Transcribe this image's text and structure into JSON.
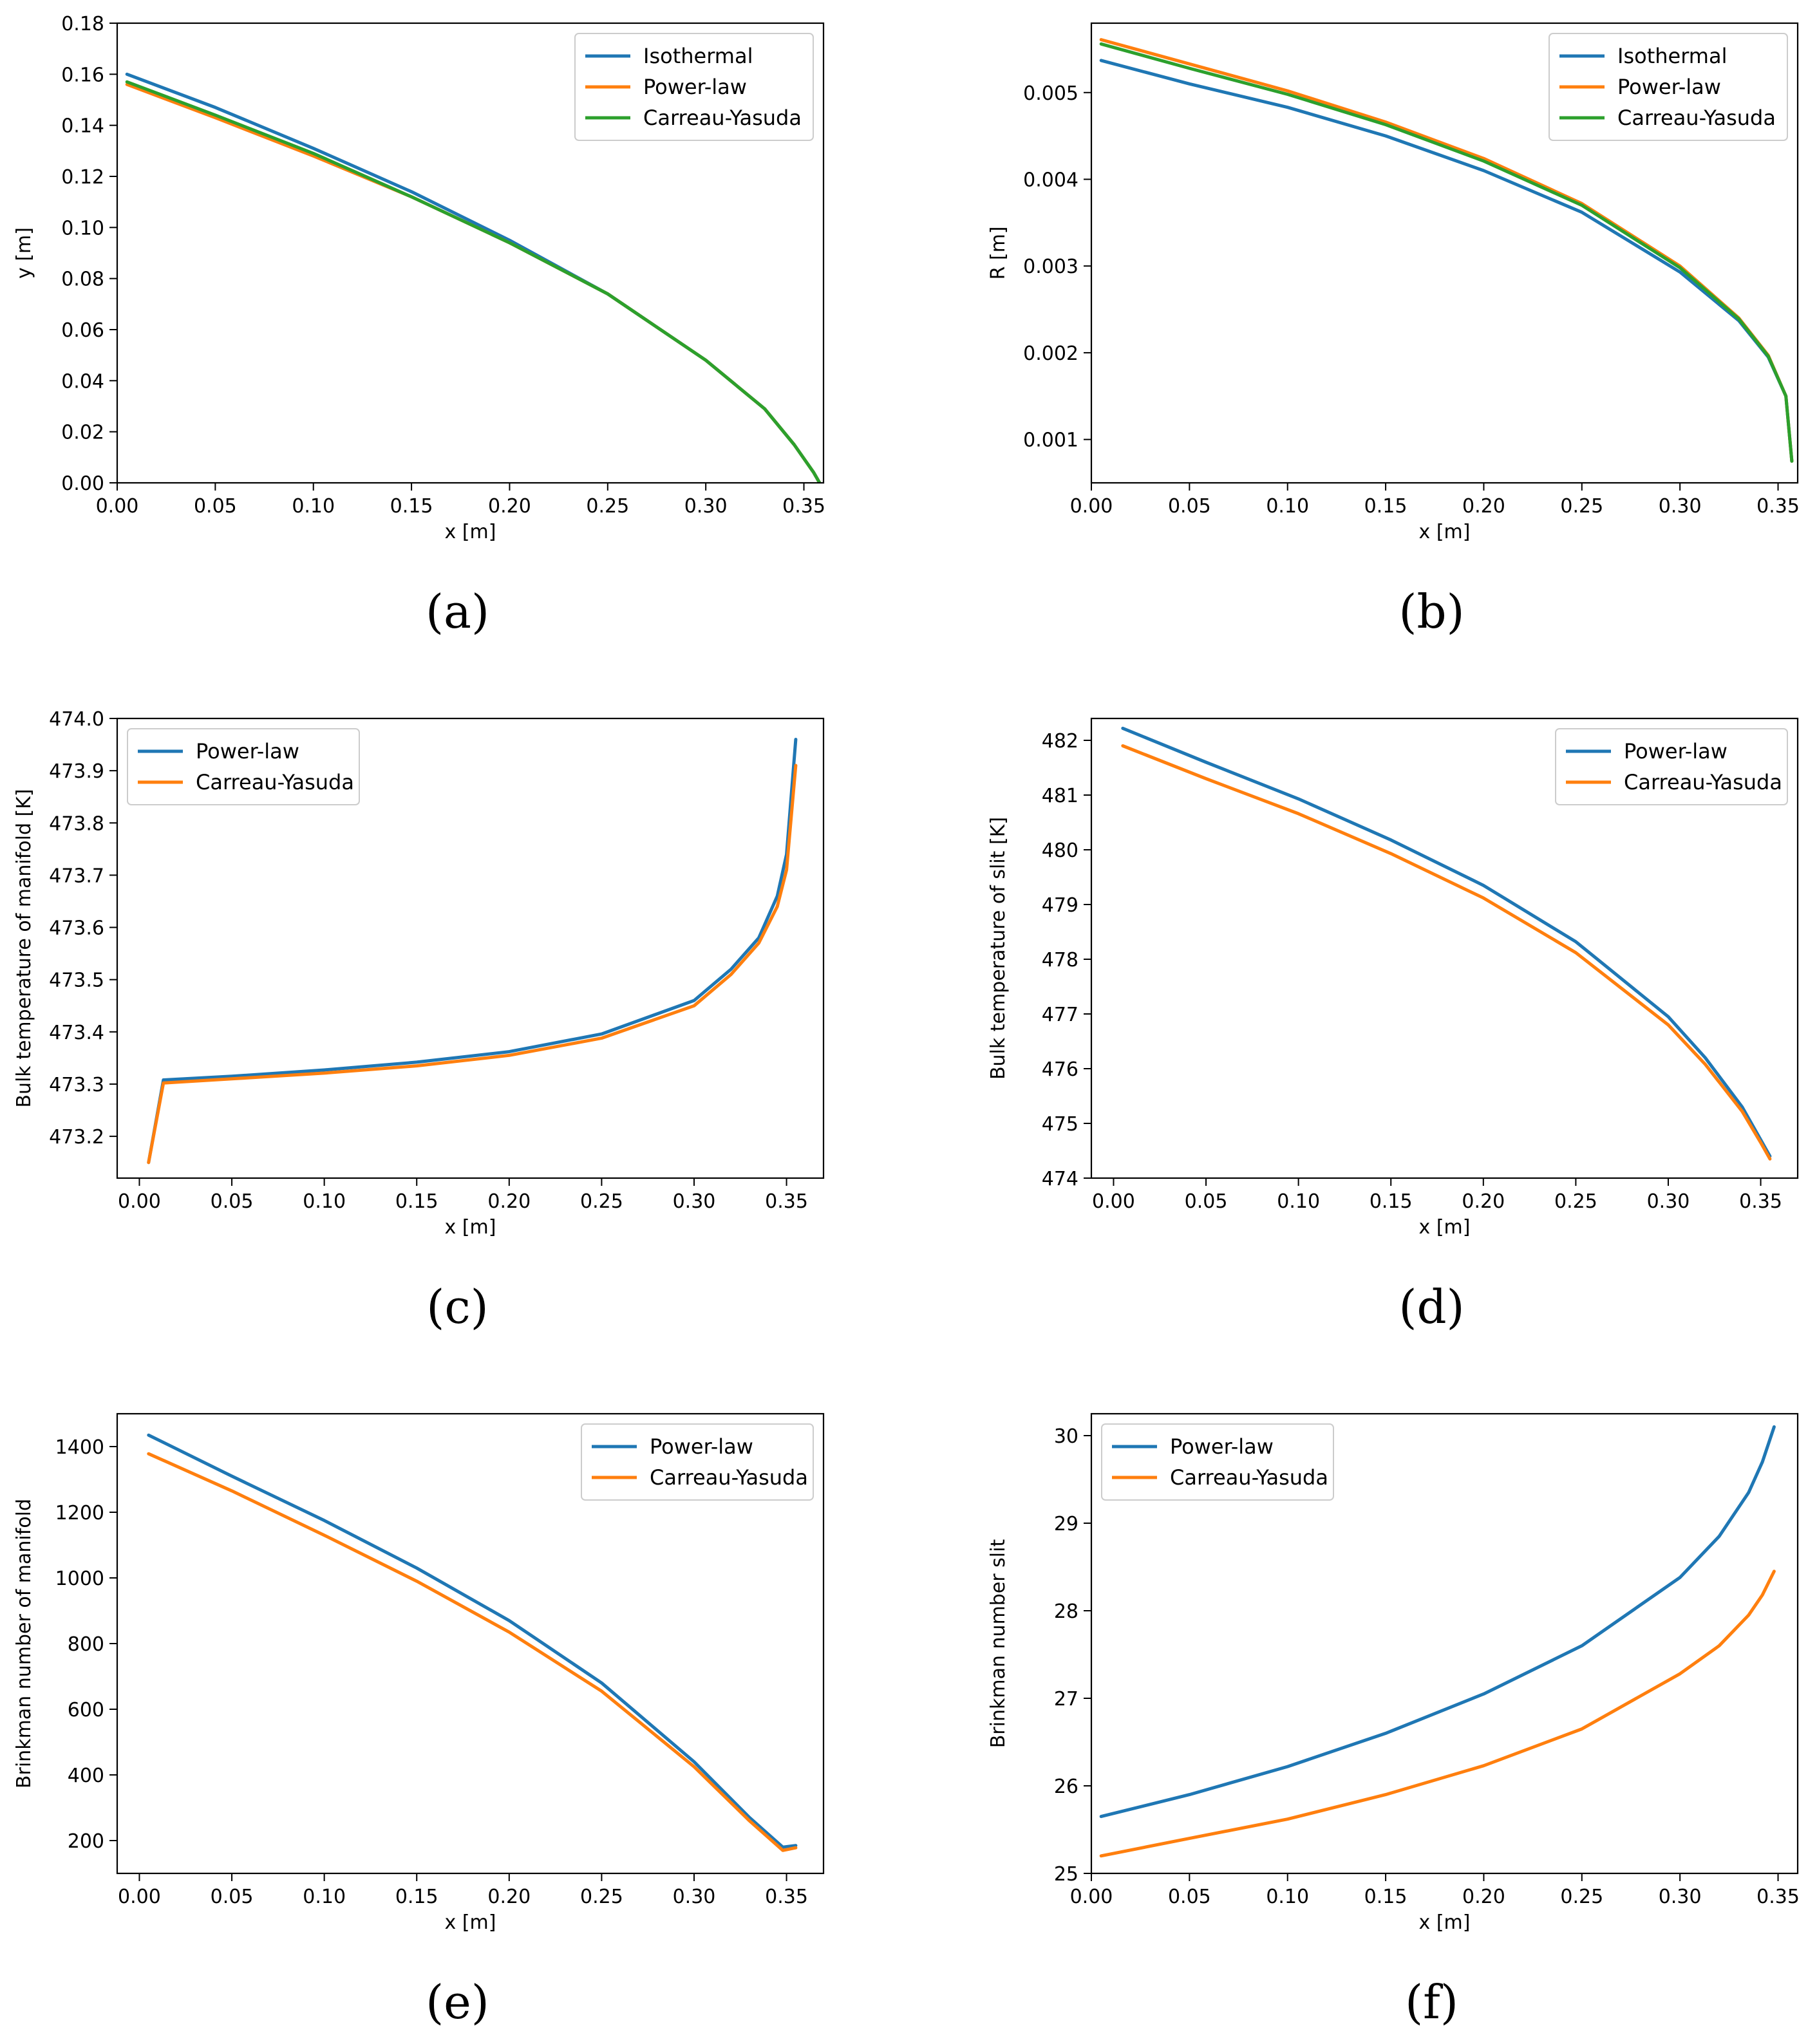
{
  "colors": {
    "blue": "#1f77b4",
    "orange": "#ff7f0e",
    "green": "#2ca02c"
  },
  "chart_data": [
    {
      "id": "a",
      "panel_label": "(a)",
      "type": "line",
      "xlabel": "x [m]",
      "ylabel": "y [m]",
      "xlim": [
        0,
        0.36
      ],
      "ylim": [
        0,
        0.18
      ],
      "xticks": [
        0,
        0.05,
        0.1,
        0.15,
        0.2,
        0.25,
        0.3,
        0.35
      ],
      "xtick_labels": [
        "0.00",
        "0.05",
        "0.10",
        "0.15",
        "0.20",
        "0.25",
        "0.30",
        "0.35"
      ],
      "yticks": [
        0,
        0.02,
        0.04,
        0.06,
        0.08,
        0.1,
        0.12,
        0.14,
        0.16,
        0.18
      ],
      "ytick_labels": [
        "0.00",
        "0.02",
        "0.04",
        "0.06",
        "0.08",
        "0.10",
        "0.12",
        "0.14",
        "0.16",
        "0.18"
      ],
      "legend": "top-right",
      "series": [
        {
          "name": "Isothermal",
          "color": "#1f77b4",
          "x": [
            0.005,
            0.05,
            0.1,
            0.15,
            0.2,
            0.25,
            0.3,
            0.33,
            0.345,
            0.355,
            0.358
          ],
          "y": [
            0.16,
            0.147,
            0.131,
            0.114,
            0.095,
            0.074,
            0.048,
            0.029,
            0.015,
            0.004,
            0.0
          ]
        },
        {
          "name": "Power-law",
          "color": "#ff7f0e",
          "x": [
            0.005,
            0.05,
            0.1,
            0.15,
            0.2,
            0.25,
            0.3,
            0.33,
            0.345,
            0.355,
            0.358
          ],
          "y": [
            0.156,
            0.143,
            0.128,
            0.112,
            0.094,
            0.074,
            0.048,
            0.029,
            0.015,
            0.004,
            0.0
          ]
        },
        {
          "name": "Carreau-Yasuda",
          "color": "#2ca02c",
          "x": [
            0.005,
            0.05,
            0.1,
            0.15,
            0.2,
            0.25,
            0.3,
            0.33,
            0.345,
            0.355,
            0.358
          ],
          "y": [
            0.157,
            0.144,
            0.129,
            0.112,
            0.094,
            0.074,
            0.048,
            0.029,
            0.015,
            0.004,
            0.0
          ]
        }
      ]
    },
    {
      "id": "b",
      "panel_label": "(b)",
      "type": "line",
      "xlabel": "x [m]",
      "ylabel": "R [m]",
      "xlim": [
        0,
        0.36
      ],
      "ylim": [
        0.0005,
        0.0058
      ],
      "xticks": [
        0,
        0.05,
        0.1,
        0.15,
        0.2,
        0.25,
        0.3,
        0.35
      ],
      "xtick_labels": [
        "0.00",
        "0.05",
        "0.10",
        "0.15",
        "0.20",
        "0.25",
        "0.30",
        "0.35"
      ],
      "yticks": [
        0.001,
        0.002,
        0.003,
        0.004,
        0.005
      ],
      "ytick_labels": [
        "0.001",
        "0.002",
        "0.003",
        "0.004",
        "0.005"
      ],
      "legend": "top-right",
      "series": [
        {
          "name": "Isothermal",
          "color": "#1f77b4",
          "x": [
            0.005,
            0.05,
            0.1,
            0.15,
            0.2,
            0.25,
            0.3,
            0.33,
            0.345,
            0.354,
            0.357
          ],
          "y": [
            0.00537,
            0.0051,
            0.00483,
            0.0045,
            0.0041,
            0.00362,
            0.00293,
            0.00237,
            0.00195,
            0.0015,
            0.00075
          ]
        },
        {
          "name": "Power-law",
          "color": "#ff7f0e",
          "x": [
            0.005,
            0.05,
            0.1,
            0.15,
            0.2,
            0.25,
            0.3,
            0.33,
            0.345,
            0.354,
            0.357
          ],
          "y": [
            0.00561,
            0.00533,
            0.00502,
            0.00466,
            0.00424,
            0.00372,
            0.003,
            0.0024,
            0.00197,
            0.0015,
            0.00075
          ]
        },
        {
          "name": "Carreau-Yasuda",
          "color": "#2ca02c",
          "x": [
            0.005,
            0.05,
            0.1,
            0.15,
            0.2,
            0.25,
            0.3,
            0.33,
            0.345,
            0.354,
            0.357
          ],
          "y": [
            0.00556,
            0.00528,
            0.00498,
            0.00463,
            0.00421,
            0.0037,
            0.00298,
            0.00239,
            0.00196,
            0.0015,
            0.00075
          ]
        }
      ]
    },
    {
      "id": "c",
      "panel_label": "(c)",
      "type": "line",
      "xlabel": "x [m]",
      "ylabel": "Bulk temperature of manifold [K]",
      "xlim": [
        -0.012,
        0.37
      ],
      "ylim": [
        473.12,
        474.0
      ],
      "xticks": [
        0,
        0.05,
        0.1,
        0.15,
        0.2,
        0.25,
        0.3,
        0.35
      ],
      "xtick_labels": [
        "0.00",
        "0.05",
        "0.10",
        "0.15",
        "0.20",
        "0.25",
        "0.30",
        "0.35"
      ],
      "yticks": [
        473.2,
        473.3,
        473.4,
        473.5,
        473.6,
        473.7,
        473.8,
        473.9,
        474.0
      ],
      "ytick_labels": [
        "473.2",
        "473.3",
        "473.4",
        "473.5",
        "473.6",
        "473.7",
        "473.8",
        "473.9",
        "474.0"
      ],
      "legend": "top-left",
      "series": [
        {
          "name": "Power-law",
          "color": "#1f77b4",
          "x": [
            0.005,
            0.013,
            0.05,
            0.1,
            0.15,
            0.2,
            0.25,
            0.3,
            0.32,
            0.335,
            0.345,
            0.35,
            0.355
          ],
          "y": [
            473.15,
            473.308,
            473.315,
            473.327,
            473.342,
            473.362,
            473.396,
            473.46,
            473.52,
            473.58,
            473.66,
            473.74,
            473.96
          ]
        },
        {
          "name": "Carreau-Yasuda",
          "color": "#ff7f0e",
          "x": [
            0.005,
            0.013,
            0.05,
            0.1,
            0.15,
            0.2,
            0.25,
            0.3,
            0.32,
            0.335,
            0.345,
            0.35,
            0.355
          ],
          "y": [
            473.15,
            473.302,
            473.31,
            473.321,
            473.335,
            473.355,
            473.388,
            473.45,
            473.51,
            473.57,
            473.64,
            473.71,
            473.91
          ]
        }
      ]
    },
    {
      "id": "d",
      "panel_label": "(d)",
      "type": "line",
      "xlabel": "x [m]",
      "ylabel": "Bulk temperature of slit [K]",
      "xlim": [
        -0.012,
        0.37
      ],
      "ylim": [
        474.0,
        482.4
      ],
      "xticks": [
        0,
        0.05,
        0.1,
        0.15,
        0.2,
        0.25,
        0.3,
        0.35
      ],
      "xtick_labels": [
        "0.00",
        "0.05",
        "0.10",
        "0.15",
        "0.20",
        "0.25",
        "0.30",
        "0.35"
      ],
      "yticks": [
        474,
        475,
        476,
        477,
        478,
        479,
        480,
        481,
        482
      ],
      "ytick_labels": [
        "474",
        "475",
        "476",
        "477",
        "478",
        "479",
        "480",
        "481",
        "482"
      ],
      "legend": "top-right",
      "series": [
        {
          "name": "Power-law",
          "color": "#1f77b4",
          "x": [
            0.005,
            0.05,
            0.1,
            0.15,
            0.2,
            0.25,
            0.3,
            0.32,
            0.34,
            0.35,
            0.355
          ],
          "y": [
            482.22,
            481.6,
            480.93,
            480.18,
            479.35,
            478.32,
            476.95,
            476.2,
            475.3,
            474.7,
            474.4
          ]
        },
        {
          "name": "Carreau-Yasuda",
          "color": "#ff7f0e",
          "x": [
            0.005,
            0.05,
            0.1,
            0.15,
            0.2,
            0.25,
            0.3,
            0.32,
            0.34,
            0.35,
            0.355
          ],
          "y": [
            481.9,
            481.3,
            480.66,
            479.93,
            479.12,
            478.12,
            476.8,
            476.08,
            475.22,
            474.65,
            474.35
          ]
        }
      ]
    },
    {
      "id": "e",
      "panel_label": "(e)",
      "type": "line",
      "xlabel": "x [m]",
      "ylabel": "Brinkman number of manifold",
      "xlim": [
        -0.012,
        0.37
      ],
      "ylim": [
        100,
        1500
      ],
      "xticks": [
        0,
        0.05,
        0.1,
        0.15,
        0.2,
        0.25,
        0.3,
        0.35
      ],
      "xtick_labels": [
        "0.00",
        "0.05",
        "0.10",
        "0.15",
        "0.20",
        "0.25",
        "0.30",
        "0.35"
      ],
      "yticks": [
        200,
        400,
        600,
        800,
        1000,
        1200,
        1400
      ],
      "ytick_labels": [
        "200",
        "400",
        "600",
        "800",
        "1000",
        "1200",
        "1400"
      ],
      "legend": "top-right",
      "series": [
        {
          "name": "Power-law",
          "color": "#1f77b4",
          "x": [
            0.005,
            0.05,
            0.1,
            0.15,
            0.2,
            0.25,
            0.3,
            0.33,
            0.348,
            0.355
          ],
          "y": [
            1435,
            1310,
            1175,
            1030,
            870,
            680,
            440,
            270,
            180,
            185
          ]
        },
        {
          "name": "Carreau-Yasuda",
          "color": "#ff7f0e",
          "x": [
            0.005,
            0.05,
            0.1,
            0.15,
            0.2,
            0.25,
            0.3,
            0.33,
            0.348,
            0.355
          ],
          "y": [
            1378,
            1265,
            1130,
            990,
            835,
            655,
            425,
            260,
            170,
            178
          ]
        }
      ]
    },
    {
      "id": "f",
      "panel_label": "(f)",
      "type": "line",
      "xlabel": "x [m]",
      "ylabel": "Brinkman number slit",
      "xlim": [
        0,
        0.36
      ],
      "ylim": [
        25.0,
        30.25
      ],
      "xticks": [
        0,
        0.05,
        0.1,
        0.15,
        0.2,
        0.25,
        0.3,
        0.35
      ],
      "xtick_labels": [
        "0.00",
        "0.05",
        "0.10",
        "0.15",
        "0.20",
        "0.25",
        "0.30",
        "0.35"
      ],
      "yticks": [
        25,
        26,
        27,
        28,
        29,
        30
      ],
      "ytick_labels": [
        "25",
        "26",
        "27",
        "28",
        "29",
        "30"
      ],
      "legend": "top-left",
      "series": [
        {
          "name": "Power-law",
          "color": "#1f77b4",
          "x": [
            0.005,
            0.05,
            0.1,
            0.15,
            0.2,
            0.25,
            0.3,
            0.32,
            0.335,
            0.342,
            0.348
          ],
          "y": [
            25.65,
            25.9,
            26.22,
            26.6,
            27.05,
            27.6,
            28.38,
            28.85,
            29.35,
            29.7,
            30.1
          ]
        },
        {
          "name": "Carreau-Yasuda",
          "color": "#ff7f0e",
          "x": [
            0.005,
            0.05,
            0.1,
            0.15,
            0.2,
            0.25,
            0.3,
            0.32,
            0.335,
            0.342,
            0.348
          ],
          "y": [
            25.2,
            25.4,
            25.62,
            25.9,
            26.23,
            26.65,
            27.28,
            27.6,
            27.95,
            28.18,
            28.45
          ]
        }
      ]
    }
  ]
}
